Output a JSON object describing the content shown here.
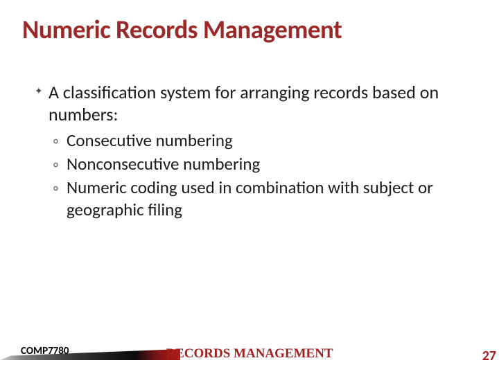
{
  "title": {
    "text": "Numeric Records Management",
    "color": "#9a2a2a",
    "fontsize": 37
  },
  "body": {
    "main_bullet": {
      "marker": "✦",
      "marker_color": "#4d4d4d",
      "text": "A classification system for arranging records based on numbers:",
      "color": "#1a1a1a",
      "fontsize": 26
    },
    "sub_bullets": {
      "marker": "◦",
      "marker_color": "#6d6d6d",
      "color": "#1a1a1a",
      "fontsize": 25,
      "items": [
        "Consecutive numbering",
        "Nonconsecutive numbering",
        "Numeric coding used in combination with subject or geographic filing"
      ]
    }
  },
  "footer": {
    "course_code": {
      "text": "COMP7780",
      "color": "#000000",
      "fontsize": 15
    },
    "center_title": {
      "text": "RECORDS MANAGEMENT",
      "color": "#a32020",
      "fontsize": 19
    },
    "page_number": {
      "text": "27",
      "color": "#a32020",
      "fontsize": 20
    }
  },
  "background_color": "#ffffff"
}
